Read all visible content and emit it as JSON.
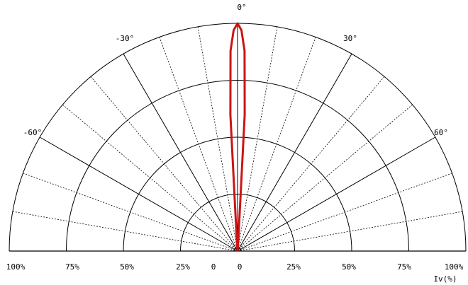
{
  "chart_data": {
    "type": "polar-half",
    "angle_labels": [
      "0°",
      "-30°",
      "30°",
      "-60°",
      "60°"
    ],
    "angle_label_values": [
      0,
      -30,
      30,
      -60,
      60
    ],
    "radial_tick_labels_left": [
      "100%",
      "75%",
      "50%",
      "25%"
    ],
    "radial_tick_labels_center": "0",
    "radial_tick_labels_right": [
      "0",
      "25%",
      "50%",
      "75%",
      "100%"
    ],
    "radial_levels": [
      25,
      50,
      75,
      100
    ],
    "angle_range": [
      -90,
      90
    ],
    "major_spokes_deg": [
      -60,
      -30,
      0,
      30,
      60
    ],
    "minor_spokes_deg": [
      -80,
      -70,
      -50,
      -40,
      -20,
      -10,
      10,
      20,
      40,
      50,
      70,
      80
    ],
    "axis_unit_label": "Iv(%)",
    "series": [
      {
        "color": "#cc1414",
        "angles_deg": [
          -4,
          -3,
          -2,
          -1,
          0,
          1,
          2,
          3,
          4
        ],
        "values_pct": [
          5,
          60,
          88,
          97,
          100,
          97,
          88,
          60,
          5
        ]
      }
    ]
  }
}
